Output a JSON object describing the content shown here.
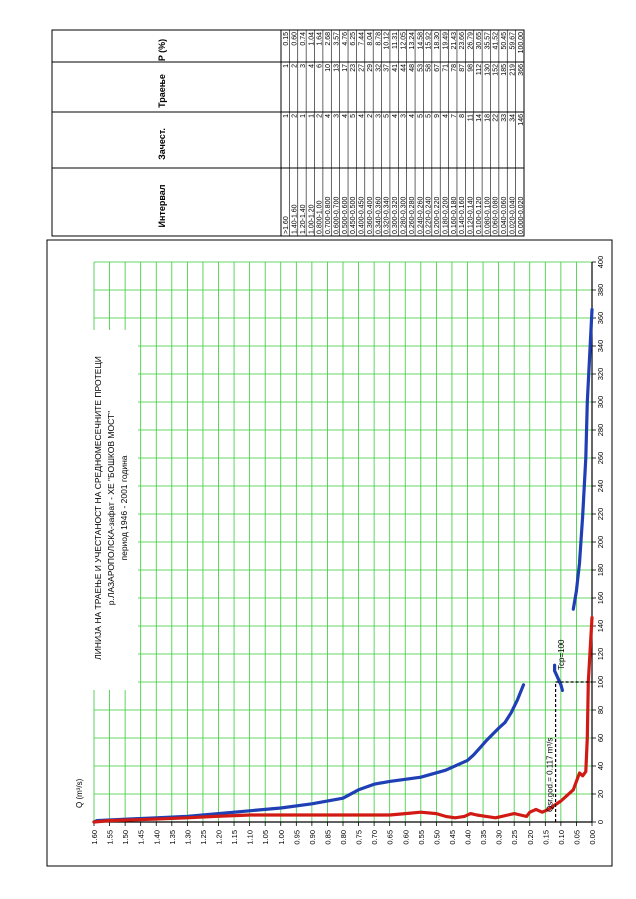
{
  "table": {
    "headers": [
      "Интервал",
      "Зачест.",
      "Траење",
      "P (%)"
    ],
    "rows": [
      [
        ">1.60",
        "1",
        "1",
        "0.15"
      ],
      [
        "1.40-1.60",
        "2",
        "2",
        "0.60"
      ],
      [
        "1.20-1.40",
        "1",
        "3",
        "0.74"
      ],
      [
        "1.00-1.20",
        "1",
        "4",
        "1.04"
      ],
      [
        "0.800-1.00",
        "2",
        "6",
        "1.64"
      ],
      [
        "0.700-0.800",
        "4",
        "10",
        "2.68"
      ],
      [
        "0.600-0.700",
        "3",
        "13",
        "3.57"
      ],
      [
        "0.500-0.600",
        "4",
        "17",
        "4.76"
      ],
      [
        "0.450-0.500",
        "5",
        "23",
        "6.25"
      ],
      [
        "0.400-0.450",
        "4",
        "27",
        "7.44"
      ],
      [
        "0.360-0.400",
        "2",
        "29",
        "8.04"
      ],
      [
        "0.340-0.360",
        "3",
        "32",
        "8.78"
      ],
      [
        "0.320-0.340",
        "5",
        "37",
        "10.12"
      ],
      [
        "0.300-0.320",
        "4",
        "41",
        "11.31"
      ],
      [
        "0.280-0.300",
        "3",
        "44",
        "12.05"
      ],
      [
        "0.260-0.280",
        "4",
        "48",
        "13.24"
      ],
      [
        "0.240-0.260",
        "5",
        "53",
        "14.58"
      ],
      [
        "0.220-0.240",
        "5",
        "58",
        "15.92"
      ],
      [
        "0.200-0.220",
        "9",
        "67",
        "18.30"
      ],
      [
        "0.180-0.200",
        "4",
        "71",
        "19.49"
      ],
      [
        "0.160-0.180",
        "7",
        "78",
        "21.43"
      ],
      [
        "0.140-0.160",
        "8",
        "87",
        "23.66"
      ],
      [
        "0.120-0.140",
        "11",
        "98",
        "26.79"
      ],
      [
        "0.100-0.120",
        "14",
        "112",
        "30.65"
      ],
      [
        "0.080-0.100",
        "18",
        "130",
        "35.57"
      ],
      [
        "0.060-0.080",
        "22",
        "152",
        "41.52"
      ],
      [
        "0.040-0.060",
        "33",
        "185",
        "50.45"
      ],
      [
        "0.020-0.040",
        "34",
        "219",
        "59.67"
      ],
      [
        "0.000-0.020",
        "146",
        "366",
        "100.00"
      ]
    ]
  },
  "chart_data": {
    "type": "line",
    "title": "ЛИНИЈА НА ТРАЕЊЕ И УЧЕСТАНОСТ НА СРЕДНОМЕСЕЧНИТЕ ПРОТЕЦИ",
    "subtitle": "р.ЛАЗАРОПОЛСКА-зафат - ХЕ \"БОШКОВ МОСТ\"",
    "period": "период 1946 - 2001 година",
    "ylabel": "Q (m³/s)",
    "xlabel": "",
    "xlim": [
      0,
      400
    ],
    "ylim": [
      0,
      1.6
    ],
    "x_ticks": [
      "0",
      "20",
      "40",
      "60",
      "80",
      "100",
      "120",
      "140",
      "160",
      "180",
      "200",
      "220",
      "240",
      "260",
      "280",
      "300",
      "320",
      "340",
      "360",
      "380",
      "400"
    ],
    "y_ticks": [
      "0.00",
      "0.05",
      "0.10",
      "0.15",
      "0.20",
      "0.25",
      "0.30",
      "0.35",
      "0.40",
      "0.45",
      "0.50",
      "0.55",
      "0.60",
      "0.65",
      "0.70",
      "0.75",
      "0.80",
      "0.85",
      "0.90",
      "0.95",
      "1.00",
      "1.05",
      "1.10",
      "1.15",
      "1.20",
      "1.25",
      "1.30",
      "1.35",
      "1.40",
      "1.45",
      "1.50",
      "1.55",
      "1.60"
    ],
    "grid": true,
    "colors": {
      "duration": "#1f3fb4",
      "frequency": "#d11a14",
      "grid": "#33cc33"
    },
    "series": [
      {
        "name": "",
        "color": "#1f3fb4",
        "segments": [
          [
            [
              0,
              1.6
            ],
            [
              1,
              1.59
            ],
            [
              2,
              1.5
            ],
            [
              3,
              1.4
            ],
            [
              4,
              1.3
            ],
            [
              6,
              1.2
            ],
            [
              10,
              1.0
            ],
            [
              13,
              0.9
            ],
            [
              17,
              0.8
            ],
            [
              23,
              0.75
            ],
            [
              27,
              0.7
            ],
            [
              29,
              0.65
            ],
            [
              32,
              0.55
            ],
            [
              37,
              0.47
            ],
            [
              41,
              0.43
            ],
            [
              44,
              0.4
            ],
            [
              48,
              0.38
            ],
            [
              53,
              0.36
            ],
            [
              58,
              0.34
            ],
            [
              67,
              0.3
            ],
            [
              71,
              0.28
            ],
            [
              78,
              0.26
            ],
            [
              87,
              0.24
            ],
            [
              98,
              0.22
            ]
          ],
          [
            [
              94,
              0.095
            ],
            [
              98,
              0.1
            ],
            [
              103,
              0.11
            ],
            [
              108,
              0.12
            ],
            [
              112,
              0.12
            ]
          ],
          [
            [
              152,
              0.06
            ],
            [
              165,
              0.05
            ],
            [
              185,
              0.04
            ],
            [
              219,
              0.03
            ],
            [
              260,
              0.02
            ],
            [
              300,
              0.015
            ],
            [
              366,
              0.0
            ]
          ]
        ]
      },
      {
        "name": "",
        "color": "#d11a14",
        "segments": [
          [
            [
              0,
              1.6
            ],
            [
              1,
              1.55
            ],
            [
              2,
              1.41
            ],
            [
              3,
              1.3
            ],
            [
              4,
              1.21
            ],
            [
              5,
              1.1
            ],
            [
              5,
              1.0
            ],
            [
              5,
              0.9
            ],
            [
              5,
              0.8
            ],
            [
              5,
              0.7
            ],
            [
              5,
              0.65
            ],
            [
              6,
              0.6
            ],
            [
              7,
              0.55
            ],
            [
              6,
              0.5
            ],
            [
              4,
              0.47
            ],
            [
              3,
              0.44
            ],
            [
              4,
              0.41
            ],
            [
              6,
              0.39
            ],
            [
              5,
              0.37
            ],
            [
              4,
              0.34
            ],
            [
              3,
              0.31
            ],
            [
              4,
              0.29
            ],
            [
              5,
              0.27
            ],
            [
              6,
              0.25
            ],
            [
              5,
              0.23
            ],
            [
              4,
              0.21
            ],
            [
              7,
              0.2
            ],
            [
              9,
              0.18
            ],
            [
              7,
              0.16
            ],
            [
              9,
              0.14
            ],
            [
              12,
              0.12
            ],
            [
              15,
              0.1
            ],
            [
              19,
              0.08
            ],
            [
              23,
              0.06
            ],
            [
              29,
              0.05
            ],
            [
              35,
              0.04
            ],
            [
              33,
              0.03
            ],
            [
              36,
              0.02
            ],
            [
              60,
              0.015
            ],
            [
              100,
              0.012
            ],
            [
              146,
              0.0
            ]
          ]
        ]
      }
    ],
    "annotations": [
      {
        "text": "Qsr.god.= 0.117 m³/s",
        "x": 100,
        "y": 0.117
      },
      {
        "text": "Tcp=100",
        "x": 100,
        "y": 0.1
      }
    ]
  }
}
